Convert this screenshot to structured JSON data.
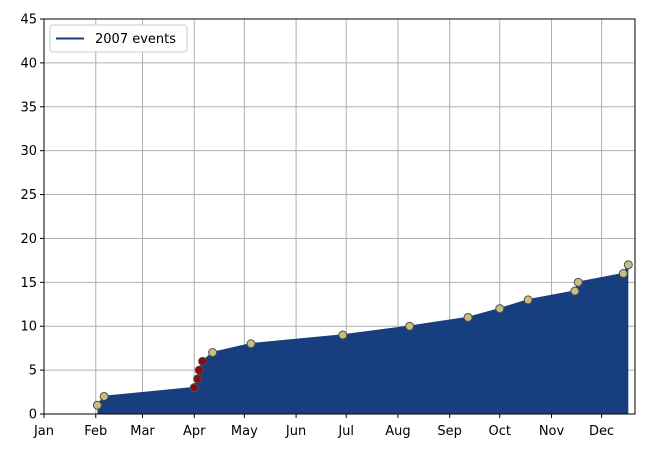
{
  "chart_data": {
    "type": "area",
    "series": [
      {
        "name": "2007 events",
        "points": [
          {
            "date": "2007-02-02",
            "y": 1,
            "color": "gold"
          },
          {
            "date": "2007-02-06",
            "y": 2,
            "color": "gold"
          },
          {
            "date": "2007-04-01",
            "y": 3,
            "color": "red"
          },
          {
            "date": "2007-04-03",
            "y": 4,
            "color": "red"
          },
          {
            "date": "2007-04-04",
            "y": 5,
            "color": "red"
          },
          {
            "date": "2007-04-06",
            "y": 6,
            "color": "red"
          },
          {
            "date": "2007-04-12",
            "y": 7,
            "color": "gold"
          },
          {
            "date": "2007-05-05",
            "y": 8,
            "color": "gold"
          },
          {
            "date": "2007-06-29",
            "y": 9,
            "color": "gold"
          },
          {
            "date": "2007-08-08",
            "y": 10,
            "color": "gold"
          },
          {
            "date": "2007-09-12",
            "y": 11,
            "color": "gold"
          },
          {
            "date": "2007-10-01",
            "y": 12,
            "color": "gold"
          },
          {
            "date": "2007-10-18",
            "y": 13,
            "color": "gold"
          },
          {
            "date": "2007-11-15",
            "y": 14,
            "color": "gold"
          },
          {
            "date": "2007-11-17",
            "y": 15,
            "color": "gold"
          },
          {
            "date": "2007-12-14",
            "y": 16,
            "color": "gold"
          },
          {
            "date": "2007-12-17",
            "y": 17,
            "color": "gold"
          }
        ]
      }
    ],
    "x_ticks": [
      "Jan",
      "Feb",
      "Mar",
      "Apr",
      "May",
      "Jun",
      "Jul",
      "Aug",
      "Sep",
      "Oct",
      "Nov",
      "Dec"
    ],
    "xlim": [
      "2007-01-01",
      "2007-12-21"
    ],
    "ylim": [
      0,
      45
    ],
    "y_ticks": [
      0,
      5,
      10,
      15,
      20,
      25,
      30,
      35,
      40,
      45
    ],
    "grid": true,
    "legend_position": "top-left",
    "colors": {
      "fill": "#173f7f",
      "line": "#173f7f",
      "gold_marker": "#c7c07d",
      "red_marker": "#8b0a14",
      "marker_edge": "#4d4d4d",
      "grid": "#b0b0b0"
    }
  }
}
